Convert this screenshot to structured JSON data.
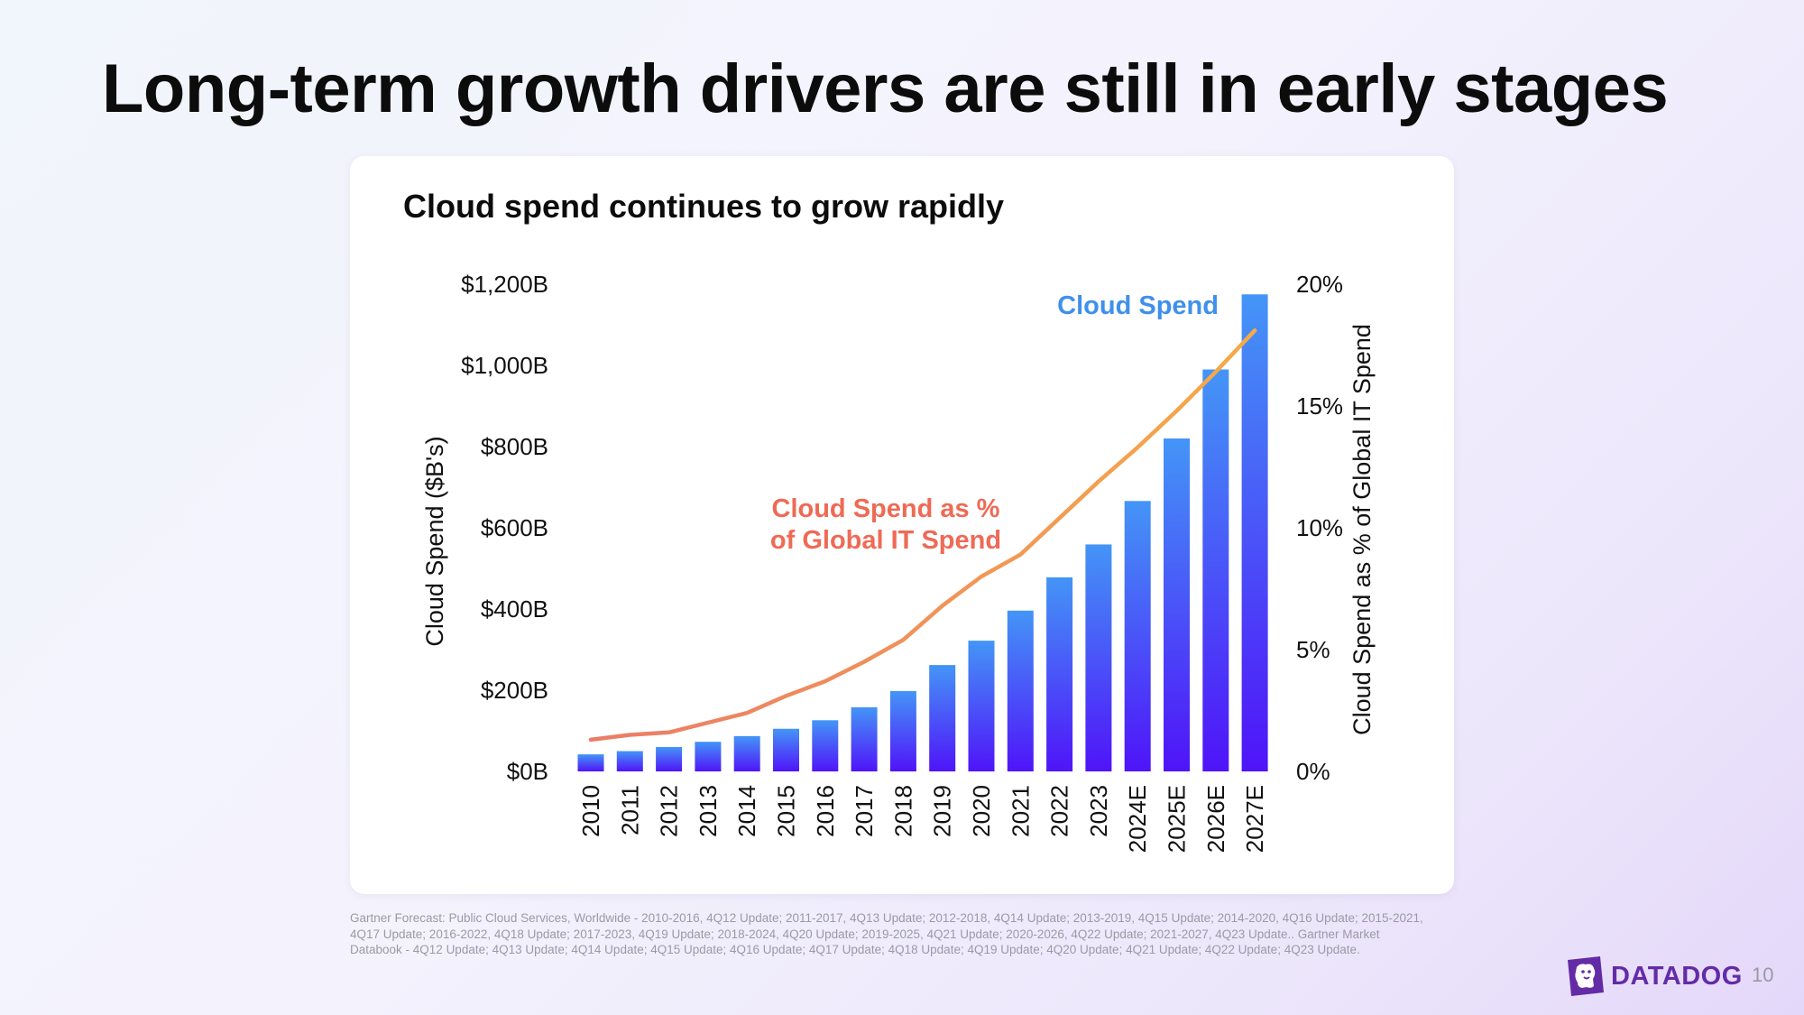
{
  "slide": {
    "title": "Long-term growth drivers are still in early stages",
    "page_number": "10",
    "brand": "DATADOG",
    "footnote": "Gartner Forecast: Public Cloud Services, Worldwide - 2010-2016, 4Q12 Update; 2011-2017, 4Q13 Update; 2012-2018, 4Q14 Update; 2013-2019, 4Q15 Update; 2014-2020, 4Q16 Update; 2015-2021, 4Q17 Update; 2016-2022, 4Q18 Update; 2017-2023, 4Q19 Update; 2018-2024, 4Q20 Update; 2019-2025, 4Q21 Update; 2020-2026, 4Q22 Update; 2021-2027, 4Q23 Update.. Gartner Market Databook - 4Q12 Update; 4Q13 Update; 4Q14 Update; 4Q15 Update; 4Q16 Update; 4Q17 Update; 4Q18 Update; 4Q19 Update; 4Q20 Update; 4Q21 Update;  4Q22 Update; 4Q23 Update."
  },
  "colors": {
    "bar_top": "#4495f7",
    "bar_bottom": "#4f14f8",
    "line_start": "#ea7c68",
    "line_end": "#f6aa48",
    "cloud_spend_label": "#3f90ec",
    "pct_label": "#ef6a55",
    "brand": "#632ca6"
  },
  "chart_data": {
    "type": "bar",
    "title": "Cloud spend continues to grow rapidly",
    "categories": [
      "2010",
      "2011",
      "2012",
      "2013",
      "2014",
      "2015",
      "2016",
      "2017",
      "2018",
      "2019",
      "2020",
      "2021",
      "2022",
      "2023",
      "2024E",
      "2025E",
      "2026E",
      "2027E"
    ],
    "series": [
      {
        "name": "Cloud Spend",
        "type": "bar",
        "axis": "left",
        "values": [
          42,
          50,
          60,
          73,
          87,
          105,
          126,
          158,
          198,
          262,
          322,
          396,
          478,
          559,
          666,
          820,
          990,
          1175
        ]
      },
      {
        "name": "Cloud Spend as % of Global IT Spend",
        "label_lines": [
          "Cloud Spend as %",
          "of Global IT Spend"
        ],
        "type": "line",
        "axis": "right",
        "values": [
          1.3,
          1.5,
          1.6,
          2.0,
          2.4,
          3.1,
          3.7,
          4.5,
          5.4,
          6.8,
          8.0,
          8.9,
          10.4,
          11.9,
          13.3,
          14.8,
          16.4,
          18.1
        ]
      }
    ],
    "ylabel": "Cloud Spend ($B's)",
    "ylabel_right": "Cloud Spend as % of Global IT Spend",
    "ylim": [
      0,
      1200
    ],
    "ylim_right": [
      0,
      20
    ],
    "yticks": [
      "$0B",
      "$200B",
      "$400B",
      "$600B",
      "$800B",
      "$1,000B",
      "$1,200B"
    ],
    "yticks_right": [
      "0%",
      "5%",
      "10%",
      "15%",
      "20%"
    ],
    "grid": false
  }
}
